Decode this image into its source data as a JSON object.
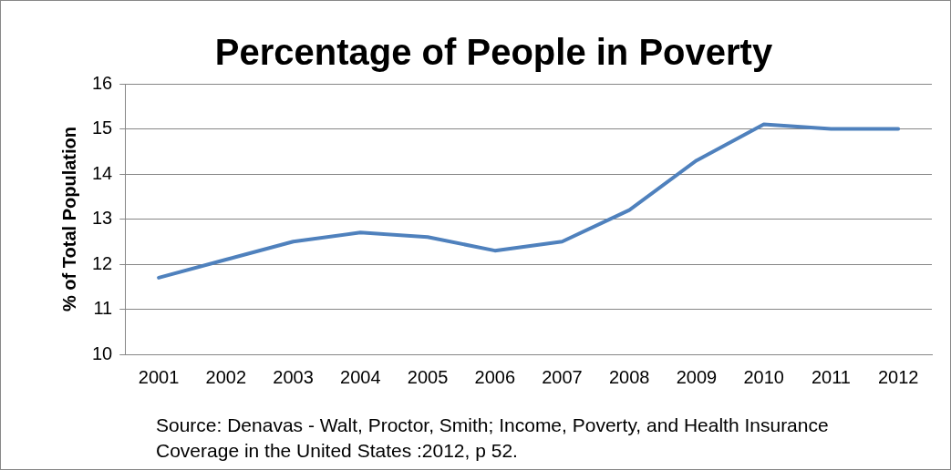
{
  "chart_data": {
    "type": "line",
    "title": "Percentage of People in Poverty",
    "ylabel": "% of Total Population",
    "categories": [
      "2001",
      "2002",
      "2003",
      "2004",
      "2005",
      "2006",
      "2007",
      "2008",
      "2009",
      "2010",
      "2011",
      "2012"
    ],
    "series": [
      {
        "color": "#4f81bd",
        "values": [
          11.7,
          12.1,
          12.5,
          12.7,
          12.6,
          12.3,
          12.5,
          13.2,
          14.3,
          15.1,
          15.0,
          15.0
        ]
      }
    ],
    "ylim": [
      10,
      16
    ],
    "yticks": [
      10,
      11,
      12,
      13,
      14,
      15,
      16
    ],
    "grid": "y",
    "marker": "none",
    "line_style": "solid",
    "annotations": [
      "Source: Denavas - Walt, Proctor, Smith; Income, Poverty, and Health Insurance Coverage in the United States :2012, p 52."
    ]
  }
}
